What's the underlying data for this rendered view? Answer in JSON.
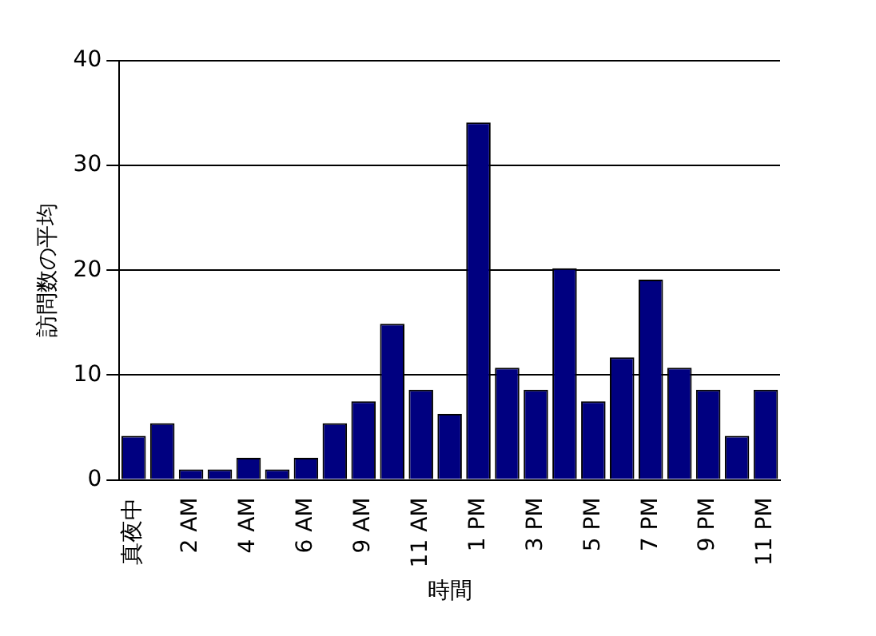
{
  "chart_data": {
    "type": "bar",
    "xlabel": "時間",
    "ylabel": "訪問数の平均",
    "categories": [
      "真夜中",
      null,
      "2 AM",
      null,
      "4 AM",
      null,
      "6 AM",
      null,
      "9 AM",
      null,
      "11 AM",
      null,
      "1 PM",
      null,
      "3 PM",
      null,
      "5 PM",
      null,
      "7 PM",
      null,
      "9 PM",
      null,
      "11 PM"
    ],
    "values": [
      4.2,
      5.4,
      1.0,
      1.0,
      2.1,
      1.0,
      2.1,
      5.4,
      7.5,
      14.9,
      8.6,
      6.3,
      34.1,
      10.7,
      8.6,
      20.2,
      7.5,
      11.7,
      19.1,
      10.7,
      8.6,
      4.2,
      8.6
    ],
    "color": "#000080",
    "ylim": [
      0,
      40
    ],
    "yticks": [
      0,
      10,
      20,
      30,
      40
    ],
    "grid": "y",
    "legend": false
  }
}
